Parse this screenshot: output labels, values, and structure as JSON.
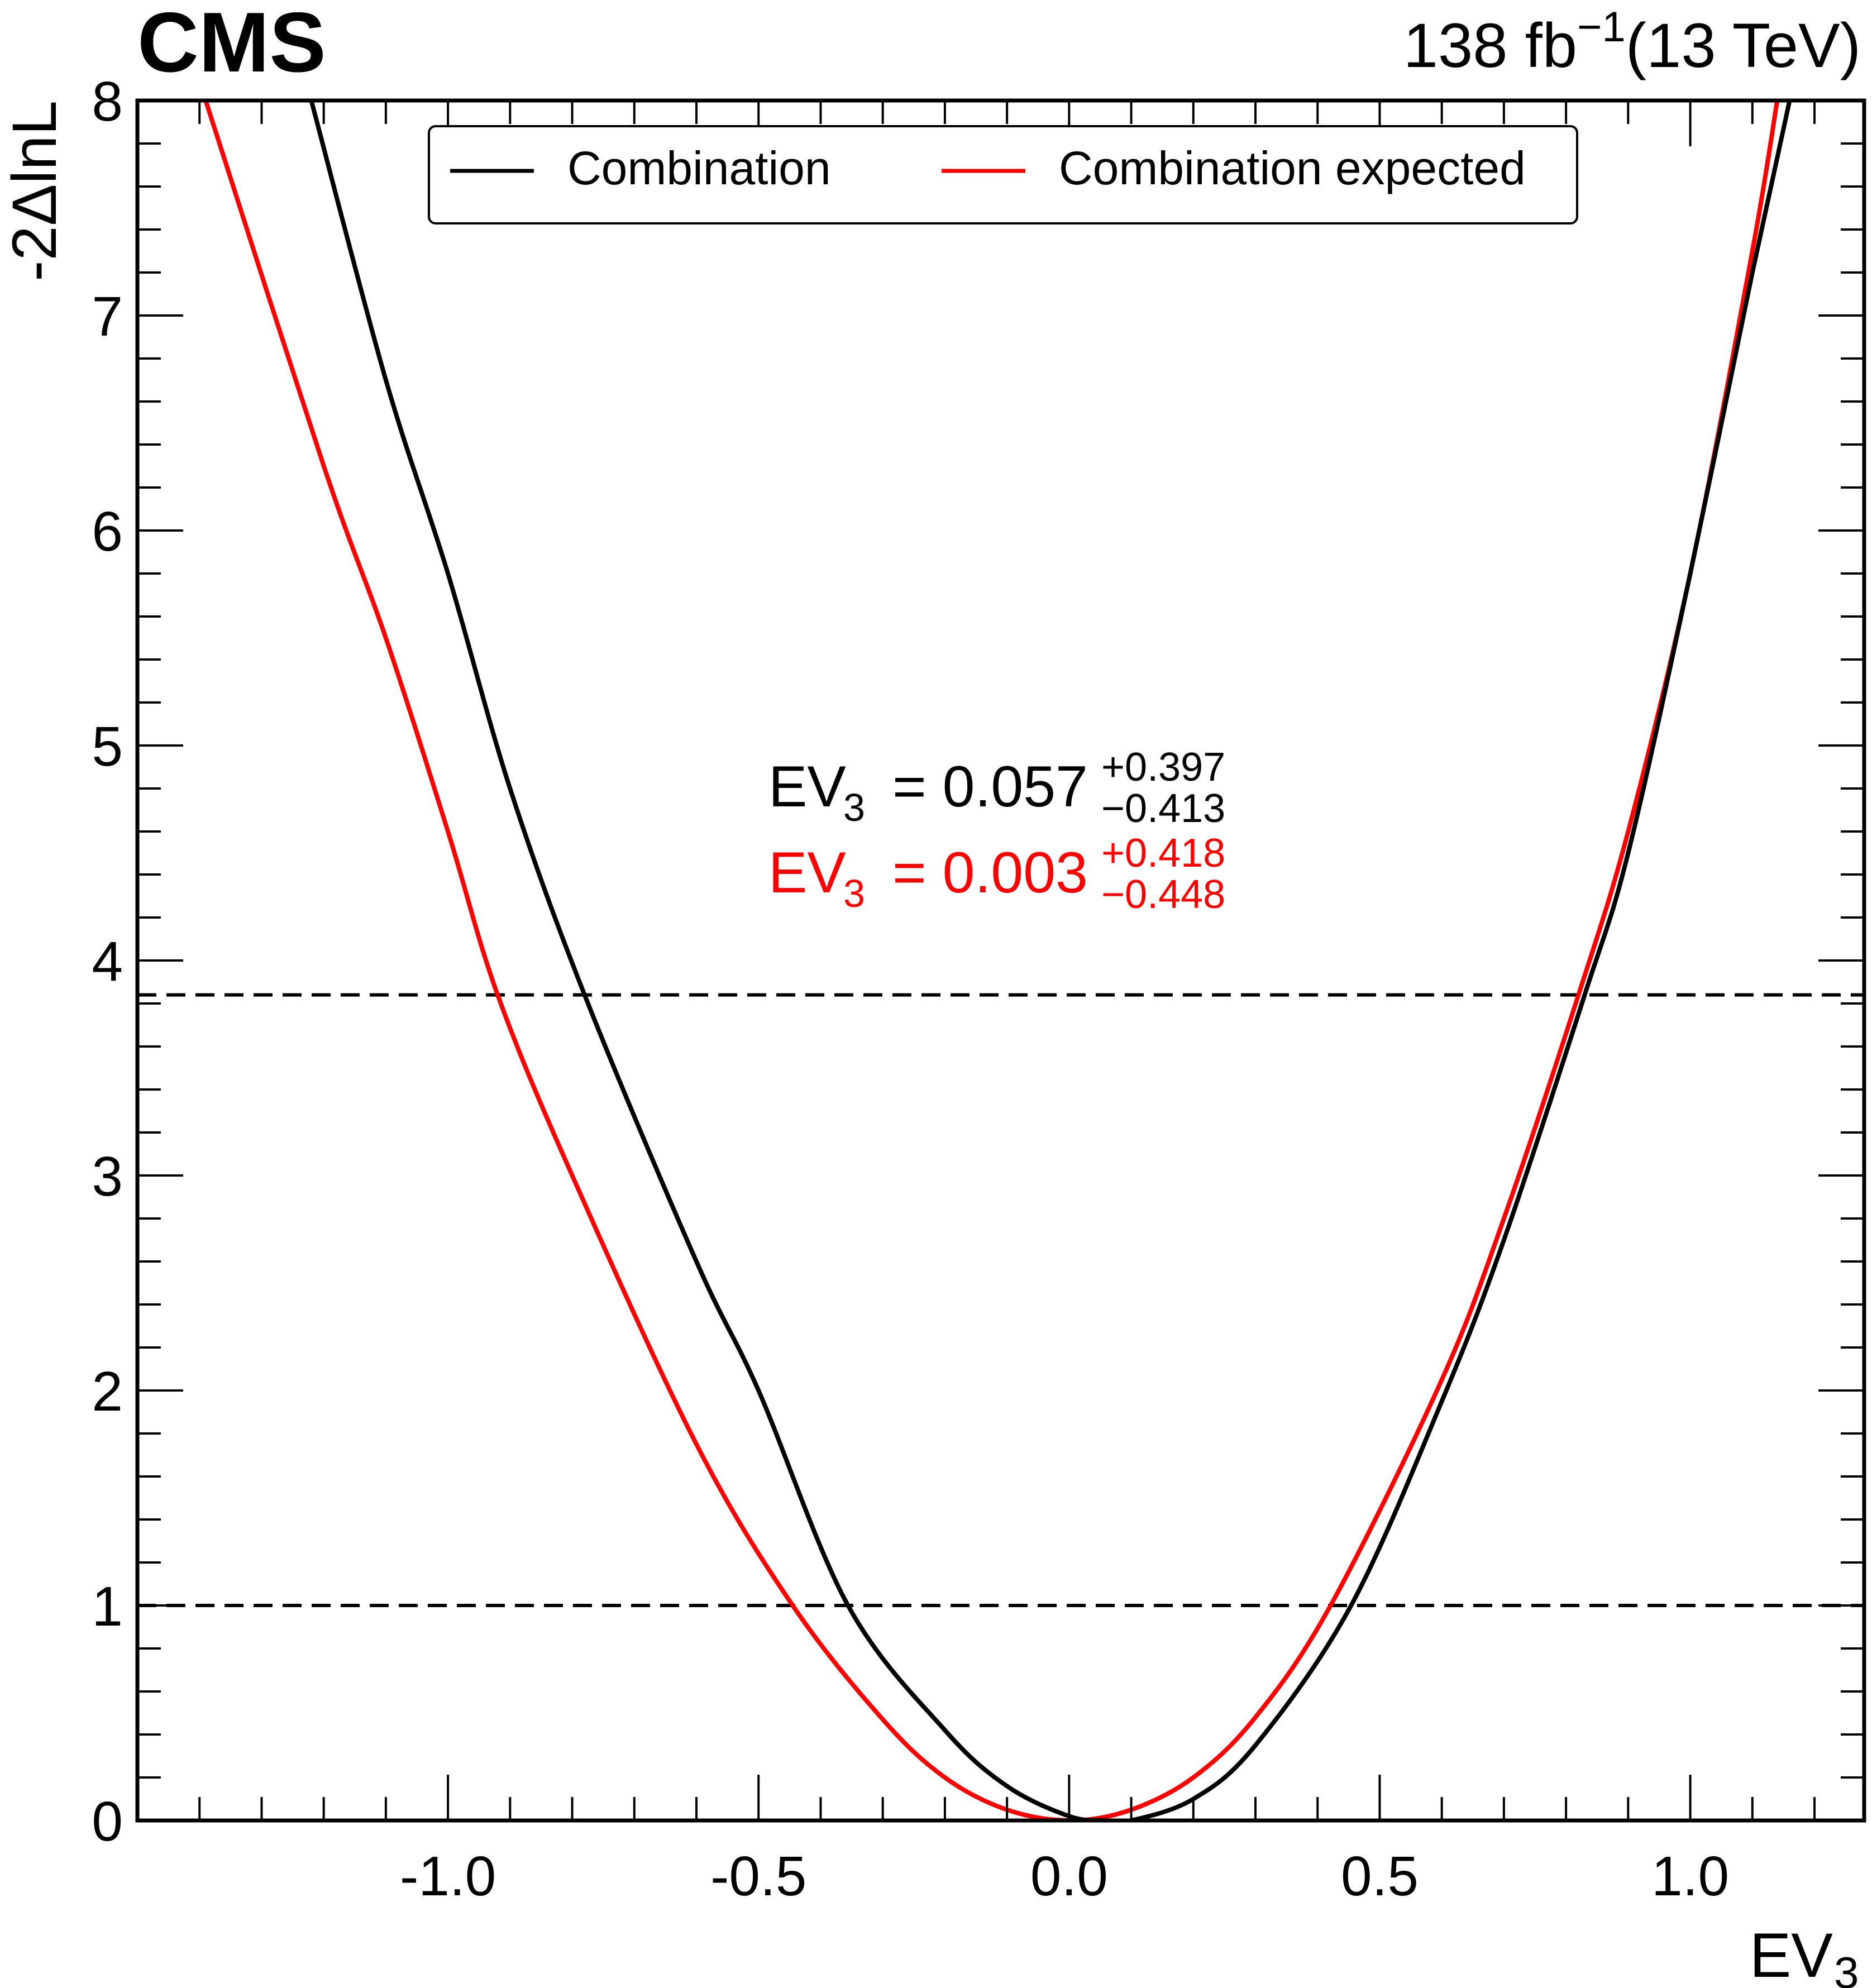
{
  "header": {
    "experiment": "CMS",
    "lumi_value": "138 fb",
    "lumi_exponent": "−1",
    "energy": "(13 TeV)"
  },
  "annotations": {
    "observed": {
      "symbol": "EV",
      "subscript": "3",
      "equals": "= 0.057",
      "up": "+0.397",
      "down": "−0.413",
      "color": "#000000"
    },
    "expected": {
      "symbol": "EV",
      "subscript": "3",
      "equals": "= 0.003",
      "up": "+0.418",
      "down": "−0.448",
      "color": "#ff0000"
    }
  },
  "chart_data": {
    "type": "line",
    "xlabel": "EV",
    "xlabel_sub": "3",
    "ylabel": "-2ΔlnL",
    "xlim": [
      -1.5,
      1.28
    ],
    "ylim": [
      0,
      8
    ],
    "x_ticks": [
      -1.0,
      -0.5,
      0.0,
      0.5,
      1.0
    ],
    "x_tick_labels": [
      "-1.0",
      "-0.5",
      "0.0",
      "0.5",
      "1.0"
    ],
    "y_ticks": [
      0,
      1,
      2,
      3,
      4,
      5,
      6,
      7,
      8
    ],
    "y_tick_labels": [
      "0",
      "1",
      "2",
      "3",
      "4",
      "5",
      "6",
      "7",
      "8"
    ],
    "reference_lines": [
      1.0,
      3.84
    ],
    "legend_placement": "top-center",
    "grid": false,
    "series": [
      {
        "name": "Combination",
        "color": "#000000",
        "points": [
          [
            -1.22,
            8.0
          ],
          [
            -1.1,
            6.7
          ],
          [
            -1.0,
            5.8
          ],
          [
            -0.9,
            4.8
          ],
          [
            -0.78,
            3.84
          ],
          [
            -0.6,
            2.6
          ],
          [
            -0.5,
            2.0
          ],
          [
            -0.356,
            1.0
          ],
          [
            -0.2,
            0.42
          ],
          [
            -0.1,
            0.16
          ],
          [
            0.0,
            0.02
          ],
          [
            0.057,
            0.0
          ],
          [
            0.1,
            0.0
          ],
          [
            0.2,
            0.1
          ],
          [
            0.3,
            0.35
          ],
          [
            0.454,
            1.0
          ],
          [
            0.6,
            1.95
          ],
          [
            0.7,
            2.7
          ],
          [
            0.83,
            3.84
          ],
          [
            0.9,
            4.5
          ],
          [
            1.0,
            5.8
          ],
          [
            1.1,
            7.2
          ],
          [
            1.16,
            8.0
          ]
        ]
      },
      {
        "name": "Combination expected",
        "color": "#ff0000",
        "points": [
          [
            -1.39,
            8.0
          ],
          [
            -1.2,
            6.3
          ],
          [
            -1.1,
            5.5
          ],
          [
            -1.0,
            4.6
          ],
          [
            -0.92,
            3.84
          ],
          [
            -0.8,
            3.0
          ],
          [
            -0.6,
            1.75
          ],
          [
            -0.445,
            1.0
          ],
          [
            -0.3,
            0.47
          ],
          [
            -0.2,
            0.2
          ],
          [
            -0.1,
            0.05
          ],
          [
            0.003,
            0.0
          ],
          [
            0.1,
            0.05
          ],
          [
            0.2,
            0.2
          ],
          [
            0.3,
            0.48
          ],
          [
            0.421,
            1.0
          ],
          [
            0.6,
            2.05
          ],
          [
            0.7,
            2.8
          ],
          [
            0.82,
            3.84
          ],
          [
            0.9,
            4.6
          ],
          [
            1.0,
            5.8
          ],
          [
            1.1,
            7.3
          ],
          [
            1.14,
            8.0
          ]
        ]
      }
    ]
  }
}
